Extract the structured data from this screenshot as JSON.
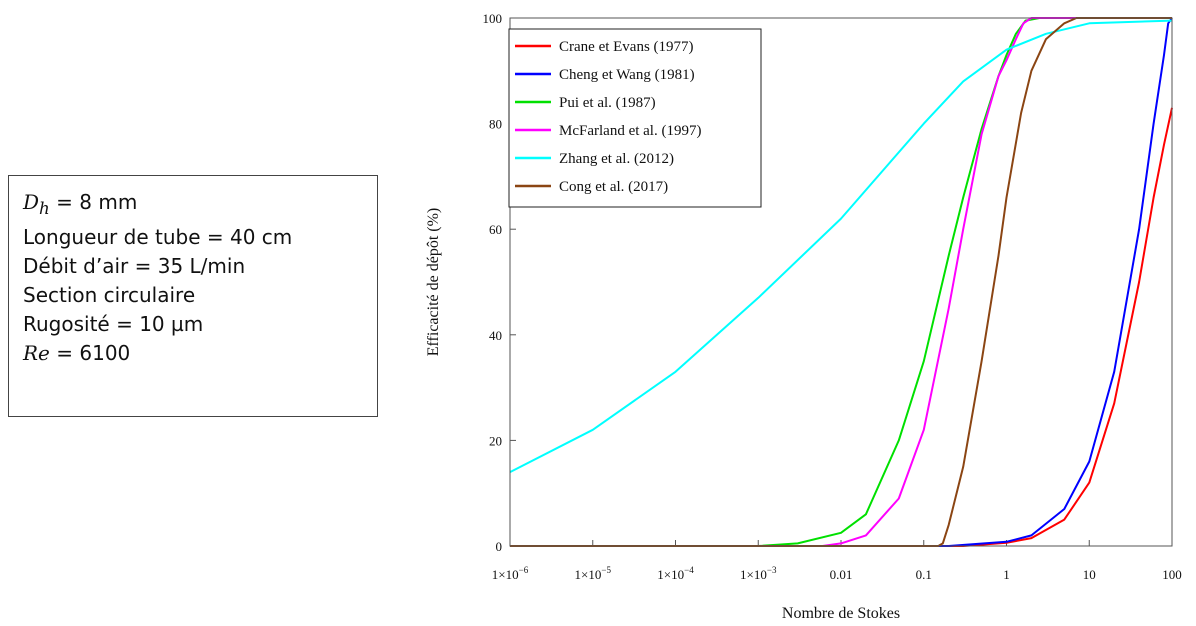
{
  "info_box": {
    "lines": [
      {
        "sym": "D",
        "sub": "h",
        "text": " = 8 mm"
      },
      {
        "text": "Longueur de tube = 40 cm"
      },
      {
        "text": "Débit d’air = 35 L/min"
      },
      {
        "text": "Section circulaire"
      },
      {
        "text": "Rugosité = 10 µm"
      },
      {
        "sym": "Re",
        "text": " = 6100"
      }
    ]
  },
  "chart_data": {
    "type": "line",
    "xlabel": "Nombre de Stokes",
    "ylabel": "Efficacité de dépôt (%)",
    "xscale": "log",
    "xlim": [
      1e-06,
      100
    ],
    "ylim": [
      0,
      100
    ],
    "x_ticks": [
      {
        "value": 1e-06,
        "mant": "1×10",
        "exp": "−6"
      },
      {
        "value": 1e-05,
        "mant": "1×10",
        "exp": "−5"
      },
      {
        "value": 0.0001,
        "mant": "1×10",
        "exp": "−4"
      },
      {
        "value": 0.001,
        "mant": "1×10",
        "exp": "−3"
      },
      {
        "value": 0.01,
        "mant": "0.01",
        "exp": ""
      },
      {
        "value": 0.1,
        "mant": "0.1",
        "exp": ""
      },
      {
        "value": 1,
        "mant": "1",
        "exp": ""
      },
      {
        "value": 10,
        "mant": "10",
        "exp": ""
      },
      {
        "value": 100,
        "mant": "100",
        "exp": ""
      }
    ],
    "y_ticks": [
      0,
      20,
      40,
      60,
      80,
      100
    ],
    "legend_position": "top-left",
    "series": [
      {
        "name": "Crane et Evans (1977)",
        "color": "#ff0000",
        "x": [
          1e-06,
          0.3,
          1,
          2,
          5,
          10,
          20,
          40,
          60,
          80,
          100
        ],
        "y": [
          0,
          0,
          0.6,
          1.5,
          5,
          12,
          27,
          50,
          66,
          76,
          83
        ]
      },
      {
        "name": "Cheng et Wang (1981)",
        "color": "#0000ff",
        "x": [
          1e-06,
          0.2,
          1,
          2,
          5,
          10,
          20,
          40,
          60,
          80,
          90,
          100
        ],
        "y": [
          0,
          0,
          0.8,
          2,
          7,
          16,
          33,
          60,
          80,
          93,
          99,
          100
        ]
      },
      {
        "name": "Pui et al. (1987)",
        "color": "#00e000",
        "x": [
          1e-06,
          0.001,
          0.003,
          0.01,
          0.02,
          0.05,
          0.1,
          0.2,
          0.3,
          0.5,
          0.8,
          1,
          1.3,
          1.7,
          2.5,
          100
        ],
        "y": [
          0,
          0,
          0.5,
          2.5,
          6,
          20,
          35,
          55,
          66,
          79,
          89,
          93,
          97,
          99.5,
          100,
          100
        ]
      },
      {
        "name": "McFarland et al. (1997)",
        "color": "#ff00ff",
        "x": [
          1e-06,
          0.006,
          0.01,
          0.02,
          0.05,
          0.1,
          0.2,
          0.3,
          0.5,
          0.8,
          1,
          1.3,
          1.6,
          2,
          3,
          100
        ],
        "y": [
          0,
          0,
          0.5,
          2,
          9,
          22,
          45,
          60,
          78,
          89,
          92,
          96,
          99,
          100,
          100,
          100
        ]
      },
      {
        "name": "Zhang et al. (2012)",
        "color": "#00ffff",
        "x": [
          1e-06,
          1e-05,
          0.0001,
          0.001,
          0.01,
          0.1,
          0.3,
          1,
          3,
          10,
          100
        ],
        "y": [
          14,
          22,
          33,
          47,
          62,
          80,
          88,
          94,
          97,
          99,
          99.5
        ]
      },
      {
        "name": "Cong et al. (2017)",
        "color": "#8b4513",
        "x": [
          1e-06,
          0.15,
          0.17,
          0.2,
          0.3,
          0.5,
          0.8,
          1,
          1.5,
          2,
          3,
          5,
          7,
          100
        ],
        "y": [
          0,
          0,
          0.5,
          4,
          15,
          35,
          55,
          66,
          82,
          90,
          96,
          99,
          100,
          100
        ]
      }
    ]
  }
}
